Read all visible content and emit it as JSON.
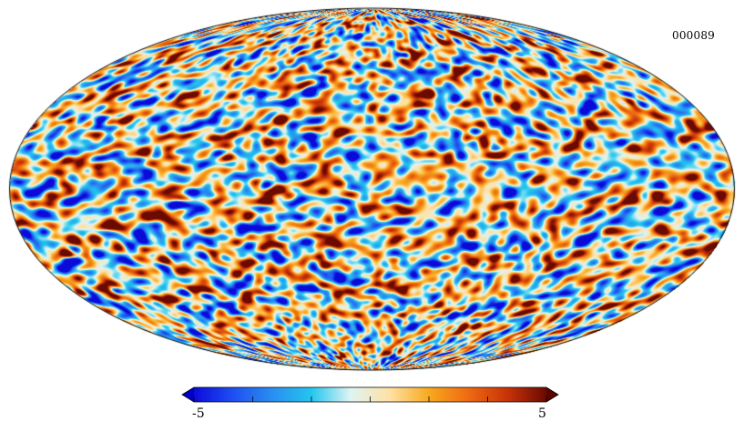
{
  "map": {
    "label": "000089",
    "projection": "mollweide",
    "background_color": "#ffffff",
    "outline_color": "#000000"
  },
  "colorbar": {
    "min_label": "-5",
    "max_label": "5",
    "vmin": -5,
    "vmax": 5,
    "colormap": "planck",
    "colors": [
      "#0b0bd9",
      "#1f4ff2",
      "#2a8ef0",
      "#23c6ee",
      "#dff4f2",
      "#ffe1a4",
      "#f7a91f",
      "#ef6a12",
      "#c73308",
      "#6b0a02"
    ],
    "under_color": "#0000c8",
    "over_color": "#5a0400",
    "extend": "both",
    "tick_count": 7
  }
}
